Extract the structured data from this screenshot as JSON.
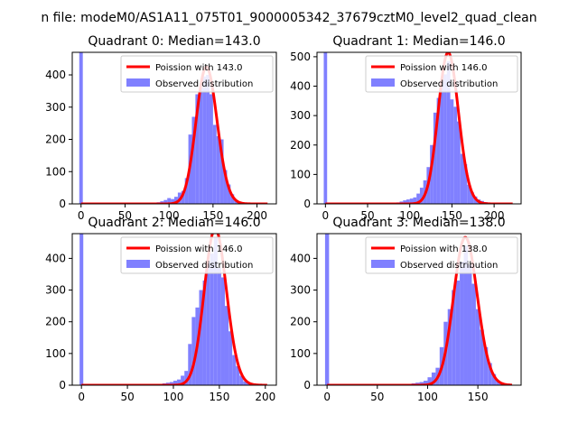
{
  "figure": {
    "suptitle": "n file: modeM0/AS1A11_075T01_9000005342_37679cztM0_level2_quad_clean"
  },
  "colors": {
    "histogram": "#8080ff",
    "poisson_fit": "#ff0000",
    "axis": "#000000"
  },
  "chart_data": [
    {
      "type": "bar",
      "title": "Quadrant 0: Median=143.0",
      "xlabel": "",
      "ylabel": "",
      "xlim": [
        -10,
        222
      ],
      "ylim": [
        0,
        470
      ],
      "xticks": [
        0,
        50,
        100,
        150,
        200
      ],
      "yticks": [
        0,
        100,
        200,
        300,
        400
      ],
      "legend_position": "top-right",
      "series": [
        {
          "name": "Poission with 143.0",
          "kind": "line",
          "mean": 143.0,
          "x_range": [
            0,
            212
          ]
        },
        {
          "name": "Observed distribution",
          "kind": "histogram",
          "bins": [
            [
              -2,
              2,
              470
            ],
            [
              78,
              82,
              2
            ],
            [
              82,
              86,
              3
            ],
            [
              86,
              90,
              5
            ],
            [
              90,
              94,
              8
            ],
            [
              94,
              98,
              12
            ],
            [
              98,
              102,
              18
            ],
            [
              102,
              106,
              15
            ],
            [
              106,
              110,
              22
            ],
            [
              110,
              114,
              35
            ],
            [
              114,
              118,
              40
            ],
            [
              118,
              122,
              80
            ],
            [
              122,
              126,
              215
            ],
            [
              126,
              130,
              270
            ],
            [
              130,
              134,
              340
            ],
            [
              134,
              138,
              360
            ],
            [
              138,
              142,
              395
            ],
            [
              142,
              146,
              400
            ],
            [
              146,
              150,
              340
            ],
            [
              150,
              154,
              245
            ],
            [
              154,
              158,
              210
            ],
            [
              158,
              162,
              200
            ],
            [
              162,
              166,
              105
            ],
            [
              166,
              170,
              60
            ],
            [
              170,
              174,
              30
            ],
            [
              174,
              178,
              12
            ],
            [
              178,
              182,
              5
            ],
            [
              182,
              186,
              3
            ]
          ]
        }
      ]
    },
    {
      "type": "bar",
      "title": "Quadrant 1: Median=146.0",
      "xlabel": "",
      "ylabel": "",
      "xlim": [
        -10,
        232
      ],
      "ylim": [
        0,
        515
      ],
      "xticks": [
        0,
        50,
        100,
        150,
        200
      ],
      "yticks": [
        0,
        100,
        200,
        300,
        400,
        500
      ],
      "legend_position": "top-right",
      "series": [
        {
          "name": "Poission with 146.0",
          "kind": "line",
          "mean": 146.0,
          "x_range": [
            0,
            222
          ]
        },
        {
          "name": "Observed distribution",
          "kind": "histogram",
          "bins": [
            [
              -2,
              2,
              515
            ],
            [
              80,
              84,
              3
            ],
            [
              84,
              88,
              5
            ],
            [
              88,
              92,
              8
            ],
            [
              92,
              96,
              12
            ],
            [
              96,
              100,
              15
            ],
            [
              100,
              104,
              18
            ],
            [
              104,
              108,
              22
            ],
            [
              108,
              112,
              35
            ],
            [
              112,
              116,
              55
            ],
            [
              116,
              120,
              80
            ],
            [
              120,
              124,
              125
            ],
            [
              124,
              128,
              200
            ],
            [
              128,
              132,
              310
            ],
            [
              132,
              136,
              360
            ],
            [
              136,
              140,
              420
            ],
            [
              140,
              144,
              440
            ],
            [
              144,
              148,
              485
            ],
            [
              148,
              152,
              355
            ],
            [
              152,
              156,
              330
            ],
            [
              156,
              160,
              280
            ],
            [
              160,
              164,
              170
            ],
            [
              164,
              168,
              135
            ],
            [
              168,
              172,
              65
            ],
            [
              172,
              176,
              40
            ],
            [
              176,
              180,
              25
            ],
            [
              180,
              184,
              15
            ],
            [
              184,
              188,
              10
            ],
            [
              188,
              192,
              6
            ]
          ]
        }
      ]
    },
    {
      "type": "bar",
      "title": "Quadrant 2: Median=146.0",
      "xlabel": "",
      "ylabel": "",
      "xlim": [
        -10,
        212
      ],
      "ylim": [
        0,
        478
      ],
      "xticks": [
        0,
        50,
        100,
        150,
        200
      ],
      "yticks": [
        0,
        100,
        200,
        300,
        400
      ],
      "legend_position": "top-right",
      "series": [
        {
          "name": "Poission with 146.0",
          "kind": "line",
          "mean": 146.0,
          "x_range": [
            0,
            202
          ]
        },
        {
          "name": "Observed distribution",
          "kind": "histogram",
          "bins": [
            [
              -2,
              2,
              478
            ],
            [
              80,
              84,
              3
            ],
            [
              84,
              88,
              4
            ],
            [
              88,
              92,
              6
            ],
            [
              92,
              96,
              8
            ],
            [
              96,
              100,
              10
            ],
            [
              100,
              104,
              14
            ],
            [
              104,
              108,
              18
            ],
            [
              108,
              112,
              30
            ],
            [
              112,
              116,
              45
            ],
            [
              116,
              120,
              130
            ],
            [
              120,
              124,
              215
            ],
            [
              124,
              128,
              245
            ],
            [
              128,
              132,
              300
            ],
            [
              132,
              136,
              330
            ],
            [
              136,
              140,
              390
            ],
            [
              140,
              144,
              415
            ],
            [
              144,
              148,
              465
            ],
            [
              148,
              152,
              370
            ],
            [
              152,
              156,
              340
            ],
            [
              156,
              160,
              250
            ],
            [
              160,
              164,
              170
            ],
            [
              164,
              168,
              95
            ],
            [
              168,
              172,
              60
            ],
            [
              172,
              176,
              30
            ],
            [
              176,
              180,
              12
            ],
            [
              180,
              184,
              6
            ]
          ]
        }
      ]
    },
    {
      "type": "bar",
      "title": "Quadrant 3: Median=138.0",
      "xlabel": "",
      "ylabel": "",
      "xlim": [
        -10,
        193
      ],
      "ylim": [
        0,
        478
      ],
      "xticks": [
        0,
        50,
        100,
        150
      ],
      "yticks": [
        0,
        100,
        200,
        300,
        400
      ],
      "legend_position": "top-right",
      "series": [
        {
          "name": "Poission with 138.0",
          "kind": "line",
          "mean": 138.0,
          "x_range": [
            0,
            184
          ]
        },
        {
          "name": "Observed distribution",
          "kind": "histogram",
          "bins": [
            [
              -2,
              2,
              478
            ],
            [
              72,
              76,
              2
            ],
            [
              76,
              80,
              3
            ],
            [
              80,
              84,
              4
            ],
            [
              84,
              88,
              6
            ],
            [
              88,
              92,
              8
            ],
            [
              92,
              96,
              10
            ],
            [
              96,
              100,
              14
            ],
            [
              100,
              104,
              25
            ],
            [
              104,
              108,
              40
            ],
            [
              108,
              112,
              55
            ],
            [
              112,
              116,
              120
            ],
            [
              116,
              120,
              200
            ],
            [
              120,
              124,
              240
            ],
            [
              124,
              128,
              300
            ],
            [
              128,
              132,
              330
            ],
            [
              132,
              136,
              390
            ],
            [
              136,
              140,
              440
            ],
            [
              140,
              144,
              380
            ],
            [
              144,
              148,
              320
            ],
            [
              148,
              152,
              240
            ],
            [
              152,
              156,
              175
            ],
            [
              156,
              160,
              120
            ],
            [
              160,
              164,
              70
            ],
            [
              164,
              168,
              35
            ],
            [
              168,
              172,
              15
            ],
            [
              172,
              176,
              6
            ],
            [
              176,
              180,
              3
            ]
          ]
        }
      ]
    }
  ]
}
